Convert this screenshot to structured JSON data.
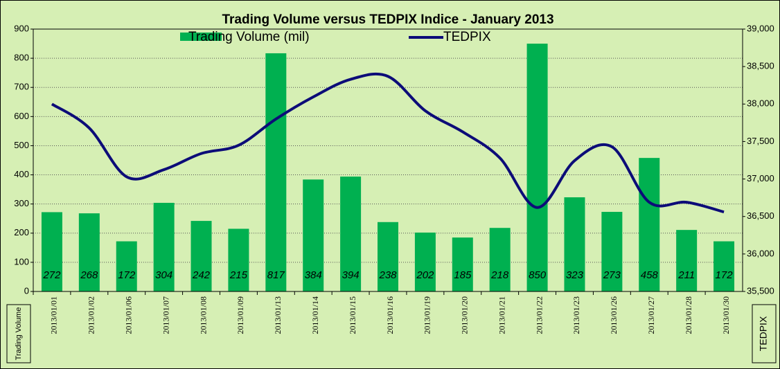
{
  "chart_data": {
    "type": "bar_line",
    "title": "Trading Volume versus TEDPIX Indice - January 2013",
    "y_label": "Trading Volume",
    "y2_label": "TEDPIX",
    "categories": [
      "2013/01/01",
      "2013/01/02",
      "2013/01/06",
      "2013/01/07",
      "2013/01/08",
      "2013/01/09",
      "2013/01/13",
      "2013/01/14",
      "2013/01/15",
      "2013/01/16",
      "2013/01/19",
      "2013/01/20",
      "2013/01/21",
      "2013/01/22",
      "2013/01/23",
      "2013/01/26",
      "2013/01/27",
      "2013/01/28",
      "2013/01/30"
    ],
    "series": [
      {
        "name": "Trading Volume (mil)",
        "type": "bar",
        "color": "#00b050",
        "values": [
          272,
          268,
          172,
          304,
          242,
          215,
          817,
          384,
          394,
          238,
          202,
          185,
          218,
          850,
          323,
          273,
          458,
          211,
          172
        ]
      },
      {
        "name": "TEDPIX",
        "type": "line",
        "axis": "y2",
        "color": "#0c0c78",
        "values": [
          38000,
          37680,
          37030,
          37125,
          37340,
          37450,
          37800,
          38095,
          38330,
          38370,
          37910,
          37630,
          37280,
          36620,
          37245,
          37430,
          36690,
          36690,
          36560
        ]
      }
    ],
    "ylim": [
      0,
      900
    ],
    "yticks": [
      0,
      100,
      200,
      300,
      400,
      500,
      600,
      700,
      800,
      900
    ],
    "y2lim": [
      35500,
      39000
    ],
    "y2ticks": [
      {
        "value": 35500,
        "label": "35,500"
      },
      {
        "value": 36000,
        "label": "36,000"
      },
      {
        "value": 36500,
        "label": "36,500"
      },
      {
        "value": 37000,
        "label": "37,000"
      },
      {
        "value": 37500,
        "label": "37,500"
      },
      {
        "value": 38000,
        "label": "38,000"
      },
      {
        "value": 38500,
        "label": "38,500"
      },
      {
        "value": 39000,
        "label": "39,000"
      }
    ],
    "grid": true
  }
}
